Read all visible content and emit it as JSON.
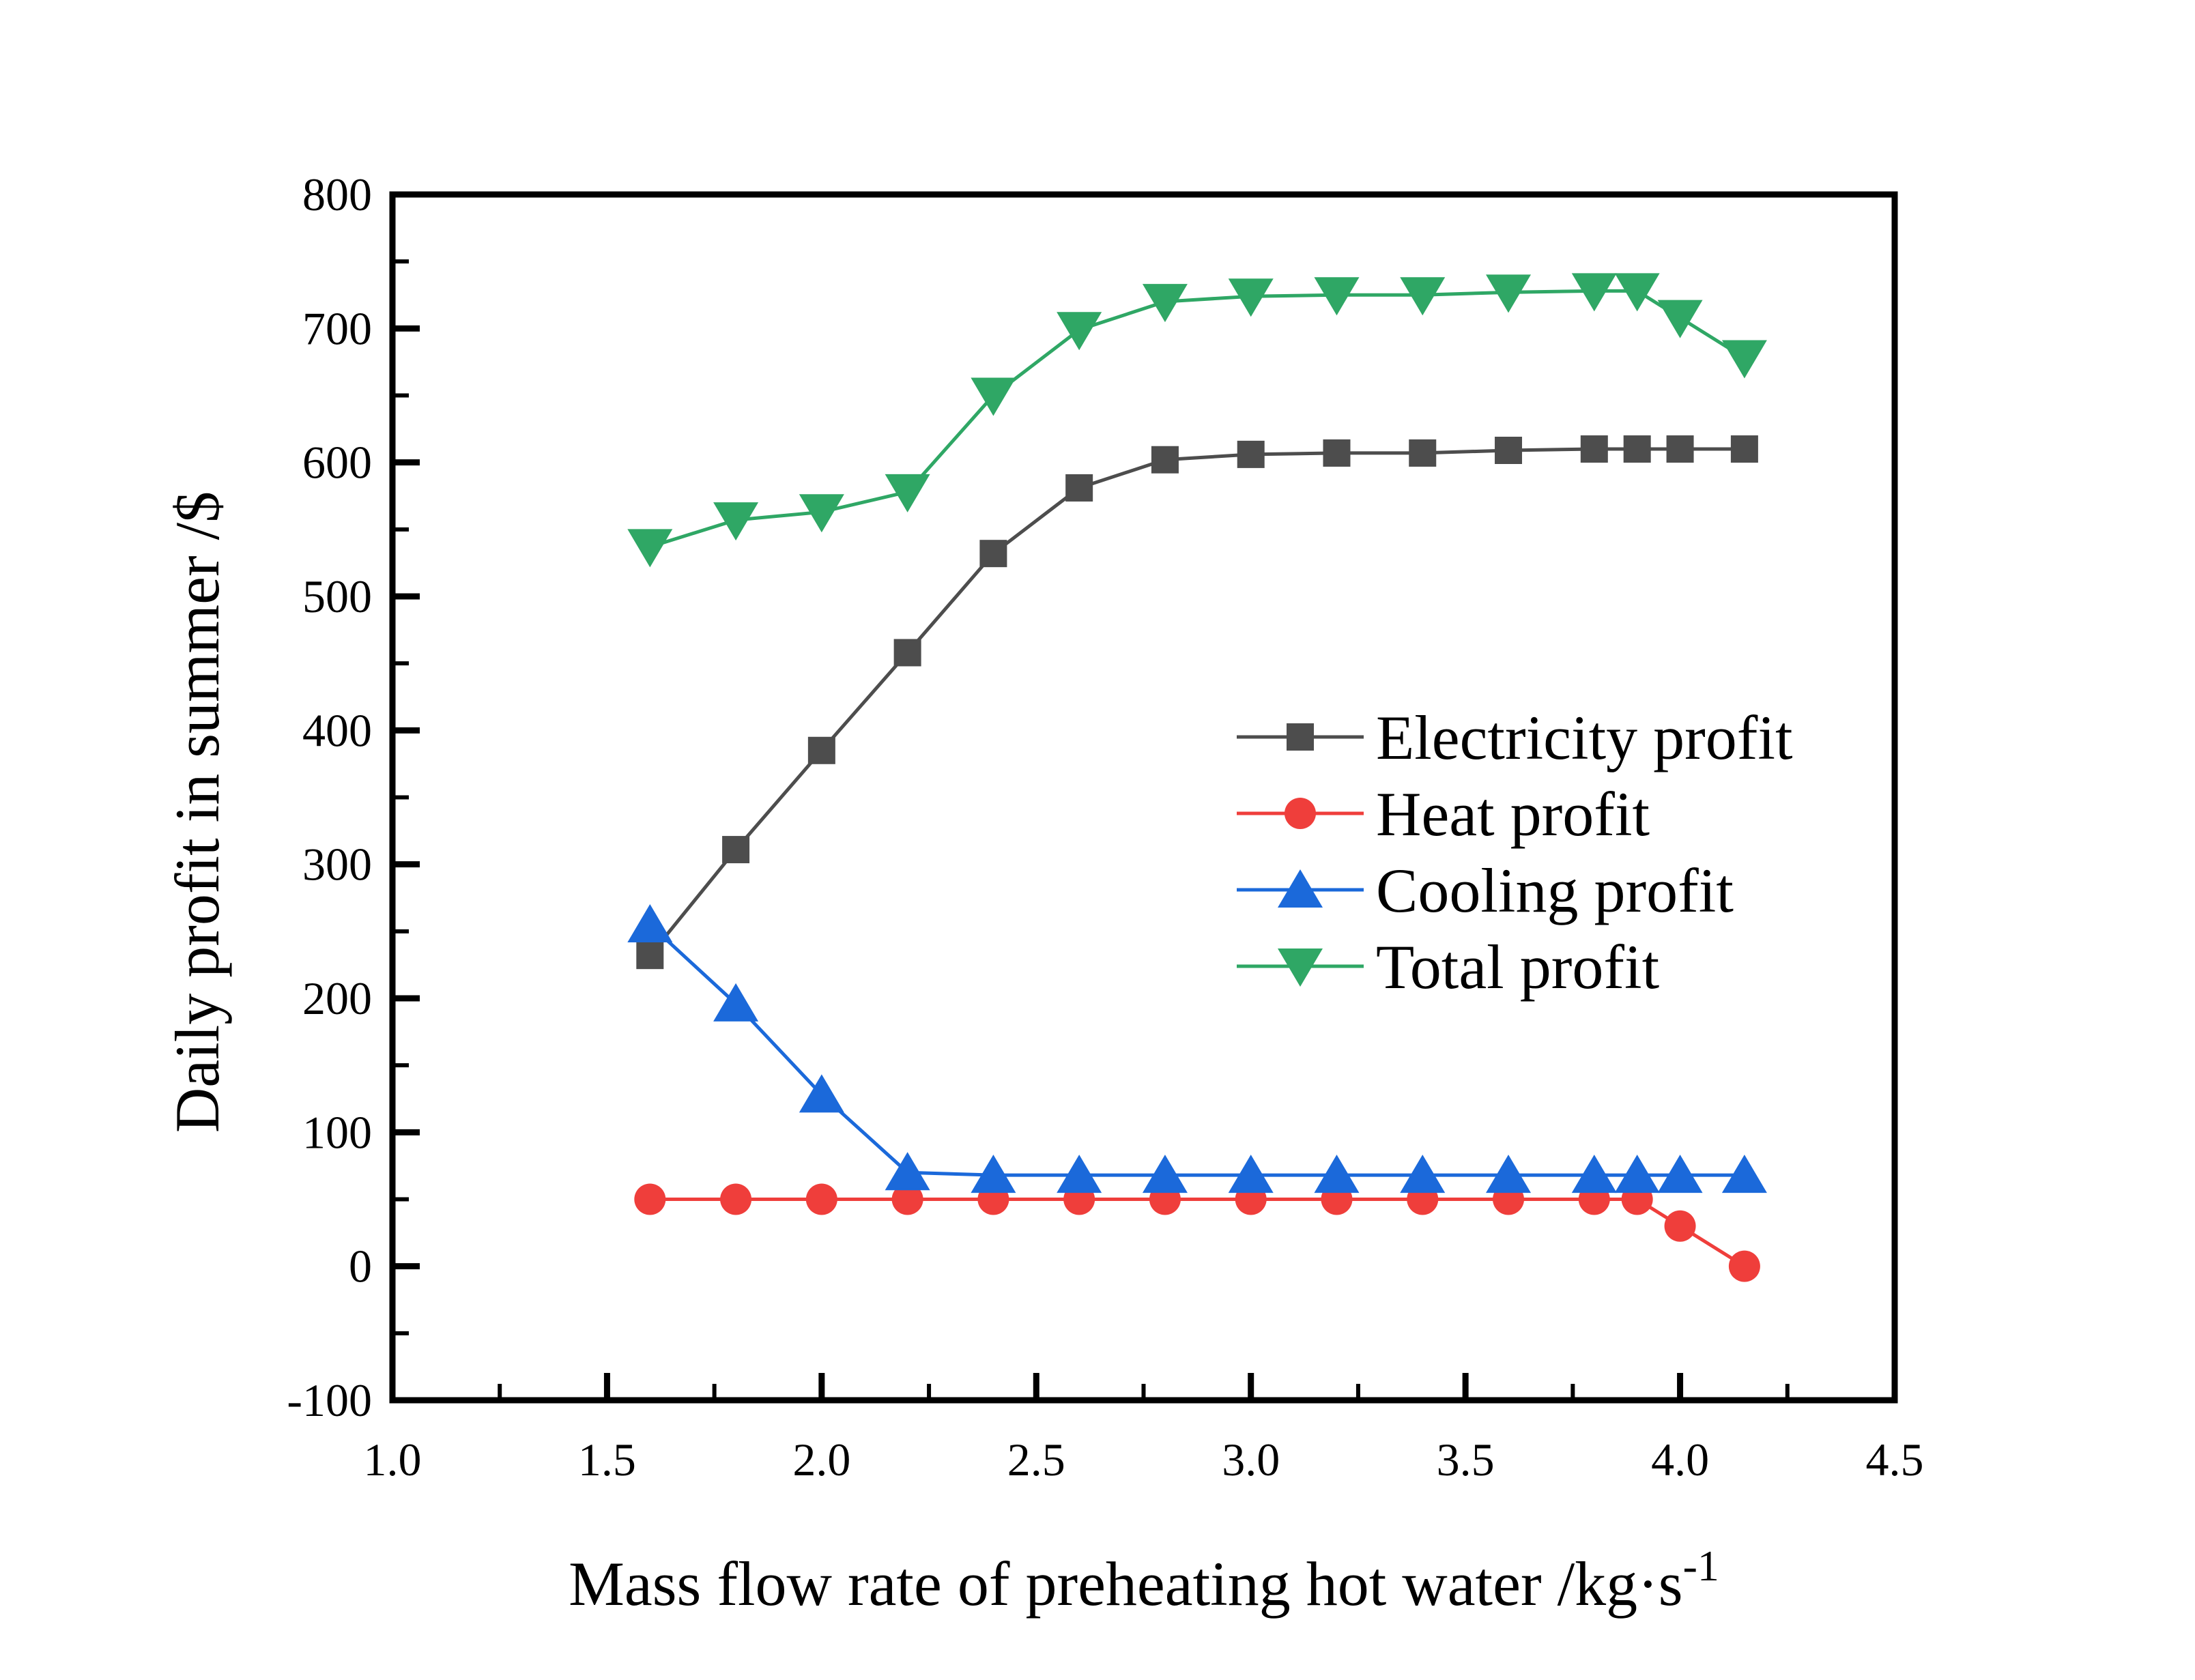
{
  "chart_data": {
    "type": "line",
    "title": "",
    "xlabel_main": "Mass flow rate of preheating hot water /kg·s",
    "xlabel_superscript": "-1",
    "xlabel_full": "Mass flow rate of preheating hot water /kg·s⁻¹",
    "ylabel": "Daily profit in summer /$",
    "x_axis": {
      "min": 1.0,
      "max": 4.5,
      "major_ticks": [
        1.0,
        1.5,
        2.0,
        2.5,
        3.0,
        3.5,
        4.0,
        4.5
      ],
      "major_tick_labels": [
        "1.0",
        "1.5",
        "2.0",
        "2.5",
        "3.0",
        "3.5",
        "4.0",
        "4.5"
      ],
      "minor_tick_step": 0.25
    },
    "y_axis": {
      "min": -100,
      "max": 800,
      "major_ticks": [
        -100,
        0,
        100,
        200,
        300,
        400,
        500,
        600,
        700,
        800
      ],
      "major_tick_labels": [
        "-100",
        "0",
        "100",
        "200",
        "300",
        "400",
        "500",
        "600",
        "700",
        "800"
      ],
      "minor_tick_step": 50
    },
    "grid": "off",
    "legend_position": "center-right",
    "x": [
      1.6,
      1.8,
      2.0,
      2.2,
      2.4,
      2.6,
      2.8,
      3.0,
      3.2,
      3.4,
      3.6,
      3.8,
      3.9,
      4.0,
      4.15
    ],
    "series": [
      {
        "name": "Electricity profit",
        "color": "#4D4D4D",
        "marker": "square",
        "values": [
          232,
          311,
          385,
          458,
          532,
          581,
          602,
          606,
          607,
          607,
          609,
          610,
          610,
          610,
          610
        ]
      },
      {
        "name": "Heat profit",
        "color": "#EF3E3B",
        "marker": "circle",
        "values": [
          50,
          50,
          50,
          50,
          50,
          50,
          50,
          50,
          50,
          50,
          50,
          50,
          50,
          30,
          0
        ]
      },
      {
        "name": "Cooling profit",
        "color": "#1B69DA",
        "marker": "triangle-up",
        "values": [
          255,
          196,
          128,
          70,
          68,
          68,
          68,
          68,
          68,
          68,
          68,
          68,
          68,
          68,
          68
        ]
      },
      {
        "name": "Total profit",
        "color": "#2FA765",
        "marker": "triangle-down",
        "values": [
          537,
          557,
          563,
          578,
          650,
          699,
          720,
          724,
          725,
          725,
          727,
          728,
          728,
          708,
          678
        ]
      }
    ]
  }
}
